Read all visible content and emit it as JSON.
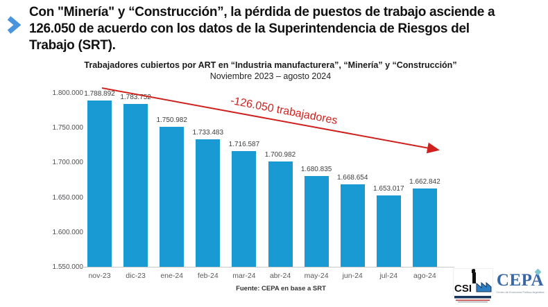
{
  "headline": {
    "text": "Con \"Minería\" y “Construcción”, la pérdida de puestos de trabajo asciende a 126.050 de acuerdo con los datos de la Superintendencia de Riesgos del Trabajo (SRT).",
    "bullet_color": "#4a94dc"
  },
  "chart_data": {
    "type": "bar",
    "title": "Trabajadores cubiertos por ART en “Industria manufacturera”, “Minería” y “Construcción”",
    "subtitle": "Noviembre 2023 – agosto 2024",
    "categories": [
      "nov-23",
      "dic-23",
      "ene-24",
      "feb-24",
      "mar-24",
      "abr-24",
      "may-24",
      "jun-24",
      "jul-24",
      "ago-24"
    ],
    "values": [
      1788892,
      1783752,
      1750982,
      1733483,
      1716587,
      1700982,
      1680835,
      1668654,
      1653017,
      1662842
    ],
    "value_labels": [
      "1.788.892",
      "1.783.752",
      "1.750.982",
      "1.733.483",
      "1.716.587",
      "1.700.982",
      "1.680.835",
      "1.668.654",
      "1.653.017",
      "1.662.842"
    ],
    "y_tick_values": [
      1800000,
      1750000,
      1700000,
      1650000,
      1600000,
      1550000
    ],
    "y_tick_labels": [
      "1.800.000",
      "1.750.000",
      "1.700.000",
      "1.650.000",
      "1.600.000",
      "1.550.000"
    ],
    "ylim": [
      1550000,
      1800000
    ],
    "bar_color": "#1a9ad3",
    "grid": false,
    "legend": false,
    "annotation": {
      "text": "-126.050 trabajadores",
      "color": "#d0211e"
    },
    "source": "Fuente: CEPA en base a SRT"
  },
  "footer": {
    "csira_letters": "CSI",
    "cepa_text": "CEPA",
    "cepa_caption": "Centro de Economía Política Argentina"
  }
}
